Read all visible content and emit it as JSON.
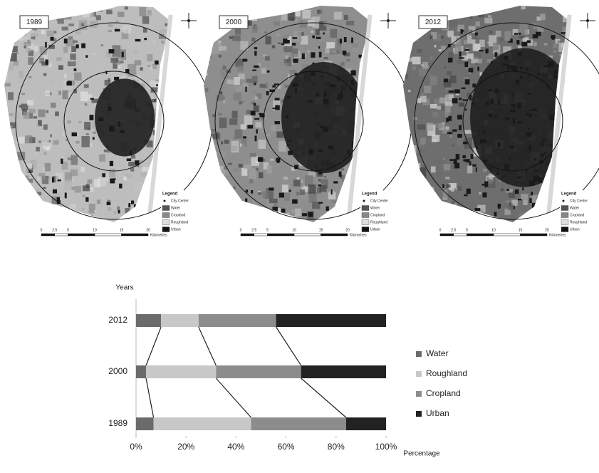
{
  "maps": [
    {
      "year": "1989",
      "legend_title": "Legend",
      "legend_items": [
        "City Center",
        "Water",
        "Cropland",
        "Roughland",
        "Urban"
      ],
      "scale_labels": [
        "0",
        "2.5",
        "5",
        "10",
        "15",
        "20"
      ],
      "scale_unit": "Kilometres"
    },
    {
      "year": "2000",
      "legend_title": "Legend",
      "legend_items": [
        "City Center",
        "Water",
        "Cropland",
        "Roughland",
        "Urban"
      ],
      "scale_labels": [
        "0",
        "2.5",
        "5",
        "10",
        "15",
        "20"
      ],
      "scale_unit": "Kilometres"
    },
    {
      "year": "2012",
      "legend_title": "Legend",
      "legend_items": [
        "City Center",
        "Water",
        "Cropland",
        "Roughland",
        "Urban"
      ],
      "scale_labels": [
        "0",
        "2.5",
        "5",
        "10",
        "15",
        "20"
      ],
      "scale_unit": "Kilometres"
    }
  ],
  "chart_data": {
    "type": "stacked-bar-horizontal",
    "xlabel": "Percentage",
    "ylabel": "Years",
    "categories": [
      "2012",
      "2000",
      "1989"
    ],
    "series": [
      {
        "name": "Water",
        "color": "#6b6b6b",
        "values": [
          10,
          4,
          7
        ]
      },
      {
        "name": "Roughland",
        "color": "#c8c8c8",
        "values": [
          15,
          28,
          39
        ]
      },
      {
        "name": "Cropland",
        "color": "#8c8c8c",
        "values": [
          31,
          34,
          38
        ]
      },
      {
        "name": "Urban",
        "color": "#222222",
        "values": [
          44,
          34,
          16
        ]
      }
    ],
    "xlim": [
      0,
      100
    ],
    "xticks": [
      {
        "value": 0,
        "label": "0%"
      },
      {
        "value": 20,
        "label": "20%"
      },
      {
        "value": 40,
        "label": "40%"
      },
      {
        "value": 60,
        "label": "60%"
      },
      {
        "value": 80,
        "label": "80%"
      },
      {
        "value": 100,
        "label": "100%"
      }
    ],
    "connectors": true,
    "legend": "right"
  }
}
